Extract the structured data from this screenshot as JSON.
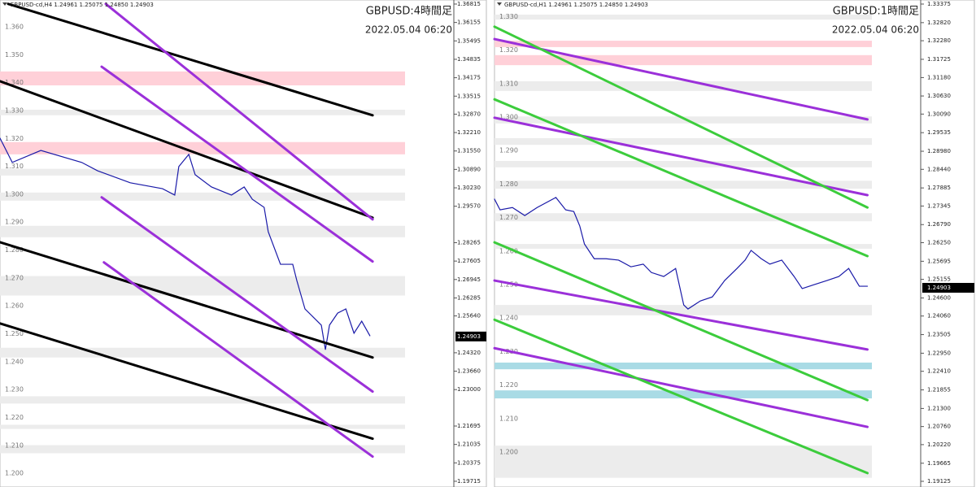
{
  "chart_data": [
    {
      "type": "line",
      "header": "GBPUSD-cd,H4  1.24961 1.25075 1.24850 1.24903",
      "title": "GBPUSD:4時間足",
      "subtitle": "2022.05.04 06:20",
      "xlim": [
        0,
        100
      ],
      "ylim": [
        1.1951,
        1.3696
      ],
      "last_price": 1.24903,
      "yticks": [
        1.36815,
        1.36155,
        1.35495,
        1.34835,
        1.34175,
        1.33515,
        {
          "value": 1.3287,
          "label": "1.32870"
        },
        {
          "value": 1.3221,
          "label": "1.32210"
        },
        {
          "value": 1.3155,
          "label": "1.31550"
        },
        {
          "value": 1.3089,
          "label": "1.30890"
        },
        {
          "value": 1.3023,
          "label": "1.30230"
        },
        {
          "value": 1.2957,
          "label": "1.29570"
        },
        1.28265,
        1.27605,
        1.26945,
        1.26285,
        {
          "value": 1.2564,
          "label": "1.25640"
        },
        {
          "value": 1.2432,
          "label": "1.24320"
        },
        {
          "value": 1.2366,
          "label": "1.23660"
        },
        {
          "value": 1.23,
          "label": "1.23000"
        },
        1.21695,
        1.21035,
        1.20375,
        1.19715
      ],
      "levels": [
        {
          "value": 1.36,
          "label": "1.360"
        },
        {
          "value": 1.35,
          "label": "1.350"
        },
        {
          "value": 1.34,
          "label": "1.340"
        },
        {
          "value": 1.33,
          "label": "1.330"
        },
        {
          "value": 1.32,
          "label": "1.320"
        },
        {
          "value": 1.31,
          "label": "1.310"
        },
        {
          "value": 1.3,
          "label": "1.300"
        },
        {
          "value": 1.29,
          "label": "1.290"
        },
        {
          "value": 1.28,
          "label": "1.280"
        },
        {
          "value": 1.27,
          "label": "1.270"
        },
        {
          "value": 1.26,
          "label": "1.260"
        },
        {
          "value": 1.25,
          "label": "1.250"
        },
        {
          "value": 1.24,
          "label": "1.240"
        },
        {
          "value": 1.23,
          "label": "1.230"
        },
        {
          "value": 1.22,
          "label": "1.220"
        },
        {
          "value": 1.21,
          "label": "1.210"
        },
        {
          "value": 1.2,
          "label": "1.200"
        }
      ],
      "bands": [
        {
          "from": 1.339,
          "to": 1.344,
          "color": "#ffd0d8"
        },
        {
          "from": 1.3143,
          "to": 1.3187,
          "color": "#ffd0d8"
        },
        {
          "from": 1.3283,
          "to": 1.3303,
          "color": "#ececec"
        },
        {
          "from": 1.3067,
          "to": 1.3091,
          "color": "#ececec"
        },
        {
          "from": 1.2977,
          "to": 1.3006,
          "color": "#ececec"
        },
        {
          "from": 1.2846,
          "to": 1.2887,
          "color": "#ececec"
        },
        {
          "from": 1.2637,
          "to": 1.2707,
          "color": "#ececec"
        },
        {
          "from": 1.2415,
          "to": 1.245,
          "color": "#ececec"
        },
        {
          "from": 1.225,
          "to": 1.2276,
          "color": "#ececec"
        },
        {
          "from": 1.2159,
          "to": 1.2174,
          "color": "#ececec"
        },
        {
          "from": 1.2072,
          "to": 1.2101,
          "color": "#ececec"
        }
      ],
      "series": [
        {
          "color": "#1a1aa8",
          "width": 1.2,
          "x": [
            0,
            2.7,
            9,
            18,
            21.5,
            28.7,
            35.8,
            38.5,
            39.4,
            41.6,
            43,
            46.6,
            51,
            53.8,
            55.6,
            58.2,
            59.1,
            61.8,
            64.5,
            65.4,
            67.2,
            69,
            70.8,
            71.7,
            72.6,
            74.4,
            76.2,
            78,
            79.7,
            81.5
          ],
          "values": [
            1.3201,
            1.3114,
            1.3157,
            1.3114,
            1.3084,
            1.3041,
            1.302,
            1.2997,
            1.3099,
            1.3143,
            1.307,
            1.3026,
            1.2997,
            1.3026,
            1.2982,
            1.2953,
            1.2866,
            1.2749,
            1.2749,
            1.2691,
            1.2589,
            1.256,
            1.2531,
            1.2443,
            1.2531,
            1.2574,
            1.2589,
            1.2502,
            1.2545,
            1.2493
          ]
        },
        {
          "color": "#000000",
          "width": 3,
          "x": [
            1.8,
            82.1
          ],
          "values": [
            1.3682,
            1.3283
          ]
        },
        {
          "color": "#000000",
          "width": 3,
          "x": [
            0,
            82.1
          ],
          "values": [
            1.3405,
            1.2916
          ]
        },
        {
          "color": "#000000",
          "width": 3,
          "x": [
            0,
            82.1
          ],
          "values": [
            1.2828,
            1.2415
          ]
        },
        {
          "color": "#000000",
          "width": 3,
          "x": [
            0,
            82.1
          ],
          "values": [
            1.2537,
            1.2124
          ]
        },
        {
          "color": "#9b30d9",
          "width": 3,
          "x": [
            23.3,
            82.1
          ],
          "values": [
            1.3682,
            1.291
          ]
        },
        {
          "color": "#9b30d9",
          "width": 3,
          "x": [
            22.4,
            82.1
          ],
          "values": [
            1.3457,
            1.2759
          ]
        },
        {
          "color": "#9b30d9",
          "width": 3,
          "x": [
            22.4,
            82.1
          ],
          "values": [
            1.2989,
            1.2293
          ]
        },
        {
          "color": "#9b30d9",
          "width": 3,
          "x": [
            22.9,
            82.1
          ],
          "values": [
            1.2756,
            1.206
          ]
        }
      ]
    },
    {
      "type": "line",
      "header": "GBPUSD-cd,H1  1.24961 1.25075 1.24850 1.24903",
      "title": "GBPUSD:1時間足",
      "subtitle": "2022.05.04 06:20",
      "xlim": [
        0,
        100
      ],
      "ylim": [
        1.18955,
        1.33496
      ],
      "last_price": 1.24903,
      "yticks": [
        1.33375,
        {
          "value": 1.3282,
          "label": "1.32820"
        },
        {
          "value": 1.3228,
          "label": "1.32280"
        },
        1.31725,
        {
          "value": 1.3118,
          "label": "1.31180"
        },
        {
          "value": 1.3063,
          "label": "1.30630"
        },
        {
          "value": 1.3009,
          "label": "1.30090"
        },
        1.29535,
        {
          "value": 1.2898,
          "label": "1.28980"
        },
        {
          "value": 1.2844,
          "label": "1.28440"
        },
        1.27885,
        1.27345,
        {
          "value": 1.2679,
          "label": "1.26790"
        },
        {
          "value": 1.2625,
          "label": "1.26250"
        },
        1.25695,
        1.25155,
        {
          "value": 1.246,
          "label": "1.24600"
        },
        {
          "value": 1.2406,
          "label": "1.24060"
        },
        1.23505,
        {
          "value": 1.2295,
          "label": "1.22950"
        },
        {
          "value": 1.2241,
          "label": "1.22410"
        },
        1.21855,
        {
          "value": 1.213,
          "label": "1.21300"
        },
        {
          "value": 1.2076,
          "label": "1.20760"
        },
        {
          "value": 1.2022,
          "label": "1.20220"
        },
        1.19665,
        1.19125
      ],
      "levels": [
        {
          "value": 1.33,
          "label": "1.330"
        },
        {
          "value": 1.32,
          "label": "1.320"
        },
        {
          "value": 1.31,
          "label": "1.310"
        },
        {
          "value": 1.3,
          "label": "1.300"
        },
        {
          "value": 1.29,
          "label": "1.290"
        },
        {
          "value": 1.28,
          "label": "1.280"
        },
        {
          "value": 1.27,
          "label": "1.270"
        },
        {
          "value": 1.26,
          "label": "1.260"
        },
        {
          "value": 1.25,
          "label": "1.250"
        },
        {
          "value": 1.24,
          "label": "1.240"
        },
        {
          "value": 1.23,
          "label": "1.230"
        },
        {
          "value": 1.22,
          "label": "1.220"
        },
        {
          "value": 1.21,
          "label": "1.210"
        },
        {
          "value": 1.2,
          "label": "1.200"
        }
      ],
      "bands": [
        {
          "from": 1.3209,
          "to": 1.3228,
          "color": "#ffd0d8"
        },
        {
          "from": 1.3155,
          "to": 1.3185,
          "color": "#ffd0d8"
        },
        {
          "from": 1.2247,
          "to": 1.2267,
          "color": "#a9dbe5"
        },
        {
          "from": 1.216,
          "to": 1.2184,
          "color": "#a9dbe5"
        },
        {
          "from": 1.3291,
          "to": 1.3306,
          "color": "#ececec"
        },
        {
          "from": 1.3078,
          "to": 1.3107,
          "color": "#ececec"
        },
        {
          "from": 1.2981,
          "to": 1.3002,
          "color": "#ececec"
        },
        {
          "from": 1.2917,
          "to": 1.2937,
          "color": "#ececec"
        },
        {
          "from": 1.285,
          "to": 1.2869,
          "color": "#ececec"
        },
        {
          "from": 1.2786,
          "to": 1.281,
          "color": "#ececec"
        },
        {
          "from": 1.2689,
          "to": 1.2713,
          "color": "#ececec"
        },
        {
          "from": 1.2607,
          "to": 1.2621,
          "color": "#ececec"
        },
        {
          "from": 1.2408,
          "to": 1.2439,
          "color": "#ececec"
        },
        {
          "from": 1.1923,
          "to": 1.2019,
          "color": "#ececec"
        }
      ],
      "series": [
        {
          "color": "#1a1aa8",
          "width": 1.2,
          "x": [
            0,
            1.3,
            4.2,
            7.1,
            10,
            14.4,
            16.7,
            18.6,
            20,
            21.1,
            23.4,
            26.2,
            29.1,
            32,
            34.9,
            36.8,
            39.7,
            42.5,
            44.4,
            45.4,
            48.3,
            51.1,
            54,
            56.9,
            58.8,
            60.2,
            62.6,
            64.6,
            67.4,
            70.3,
            72.2,
            75.1,
            78,
            80.8,
            83.1,
            85.6,
            87.5
          ],
          "values": [
            1.2755,
            1.2723,
            1.273,
            1.2706,
            1.273,
            1.276,
            1.2723,
            1.2718,
            1.2675,
            1.2621,
            1.2577,
            1.2577,
            1.2573,
            1.2553,
            1.2561,
            1.2536,
            1.2524,
            1.2548,
            1.2439,
            1.2427,
            1.2451,
            1.2463,
            1.2512,
            1.2548,
            1.2573,
            1.2602,
            1.2577,
            1.2561,
            1.2573,
            1.2524,
            1.2488,
            1.25,
            1.2512,
            1.2524,
            1.2548,
            1.2495,
            1.2495
          ]
        },
        {
          "color": "#9b30d9",
          "width": 3,
          "x": [
            0,
            87.5
          ],
          "values": [
            1.3233,
            1.2993
          ]
        },
        {
          "color": "#9b30d9",
          "width": 3,
          "x": [
            0,
            87.5
          ],
          "values": [
            1.2998,
            1.2767
          ]
        },
        {
          "color": "#9b30d9",
          "width": 3,
          "x": [
            0,
            87.5
          ],
          "values": [
            1.2512,
            1.2306
          ]
        },
        {
          "color": "#9b30d9",
          "width": 3,
          "x": [
            0,
            87.5
          ],
          "values": [
            1.231,
            1.2075
          ]
        },
        {
          "color": "#3ccc3c",
          "width": 3,
          "x": [
            0,
            87.5
          ],
          "values": [
            1.327,
            1.273
          ]
        },
        {
          "color": "#3ccc3c",
          "width": 3,
          "x": [
            0,
            87.5
          ],
          "values": [
            1.3053,
            1.2585
          ]
        },
        {
          "color": "#3ccc3c",
          "width": 3,
          "x": [
            0,
            87.5
          ],
          "values": [
            1.2626,
            1.2155
          ]
        },
        {
          "color": "#3ccc3c",
          "width": 3,
          "x": [
            0,
            87.5
          ],
          "values": [
            1.2395,
            1.1937
          ]
        }
      ]
    }
  ]
}
